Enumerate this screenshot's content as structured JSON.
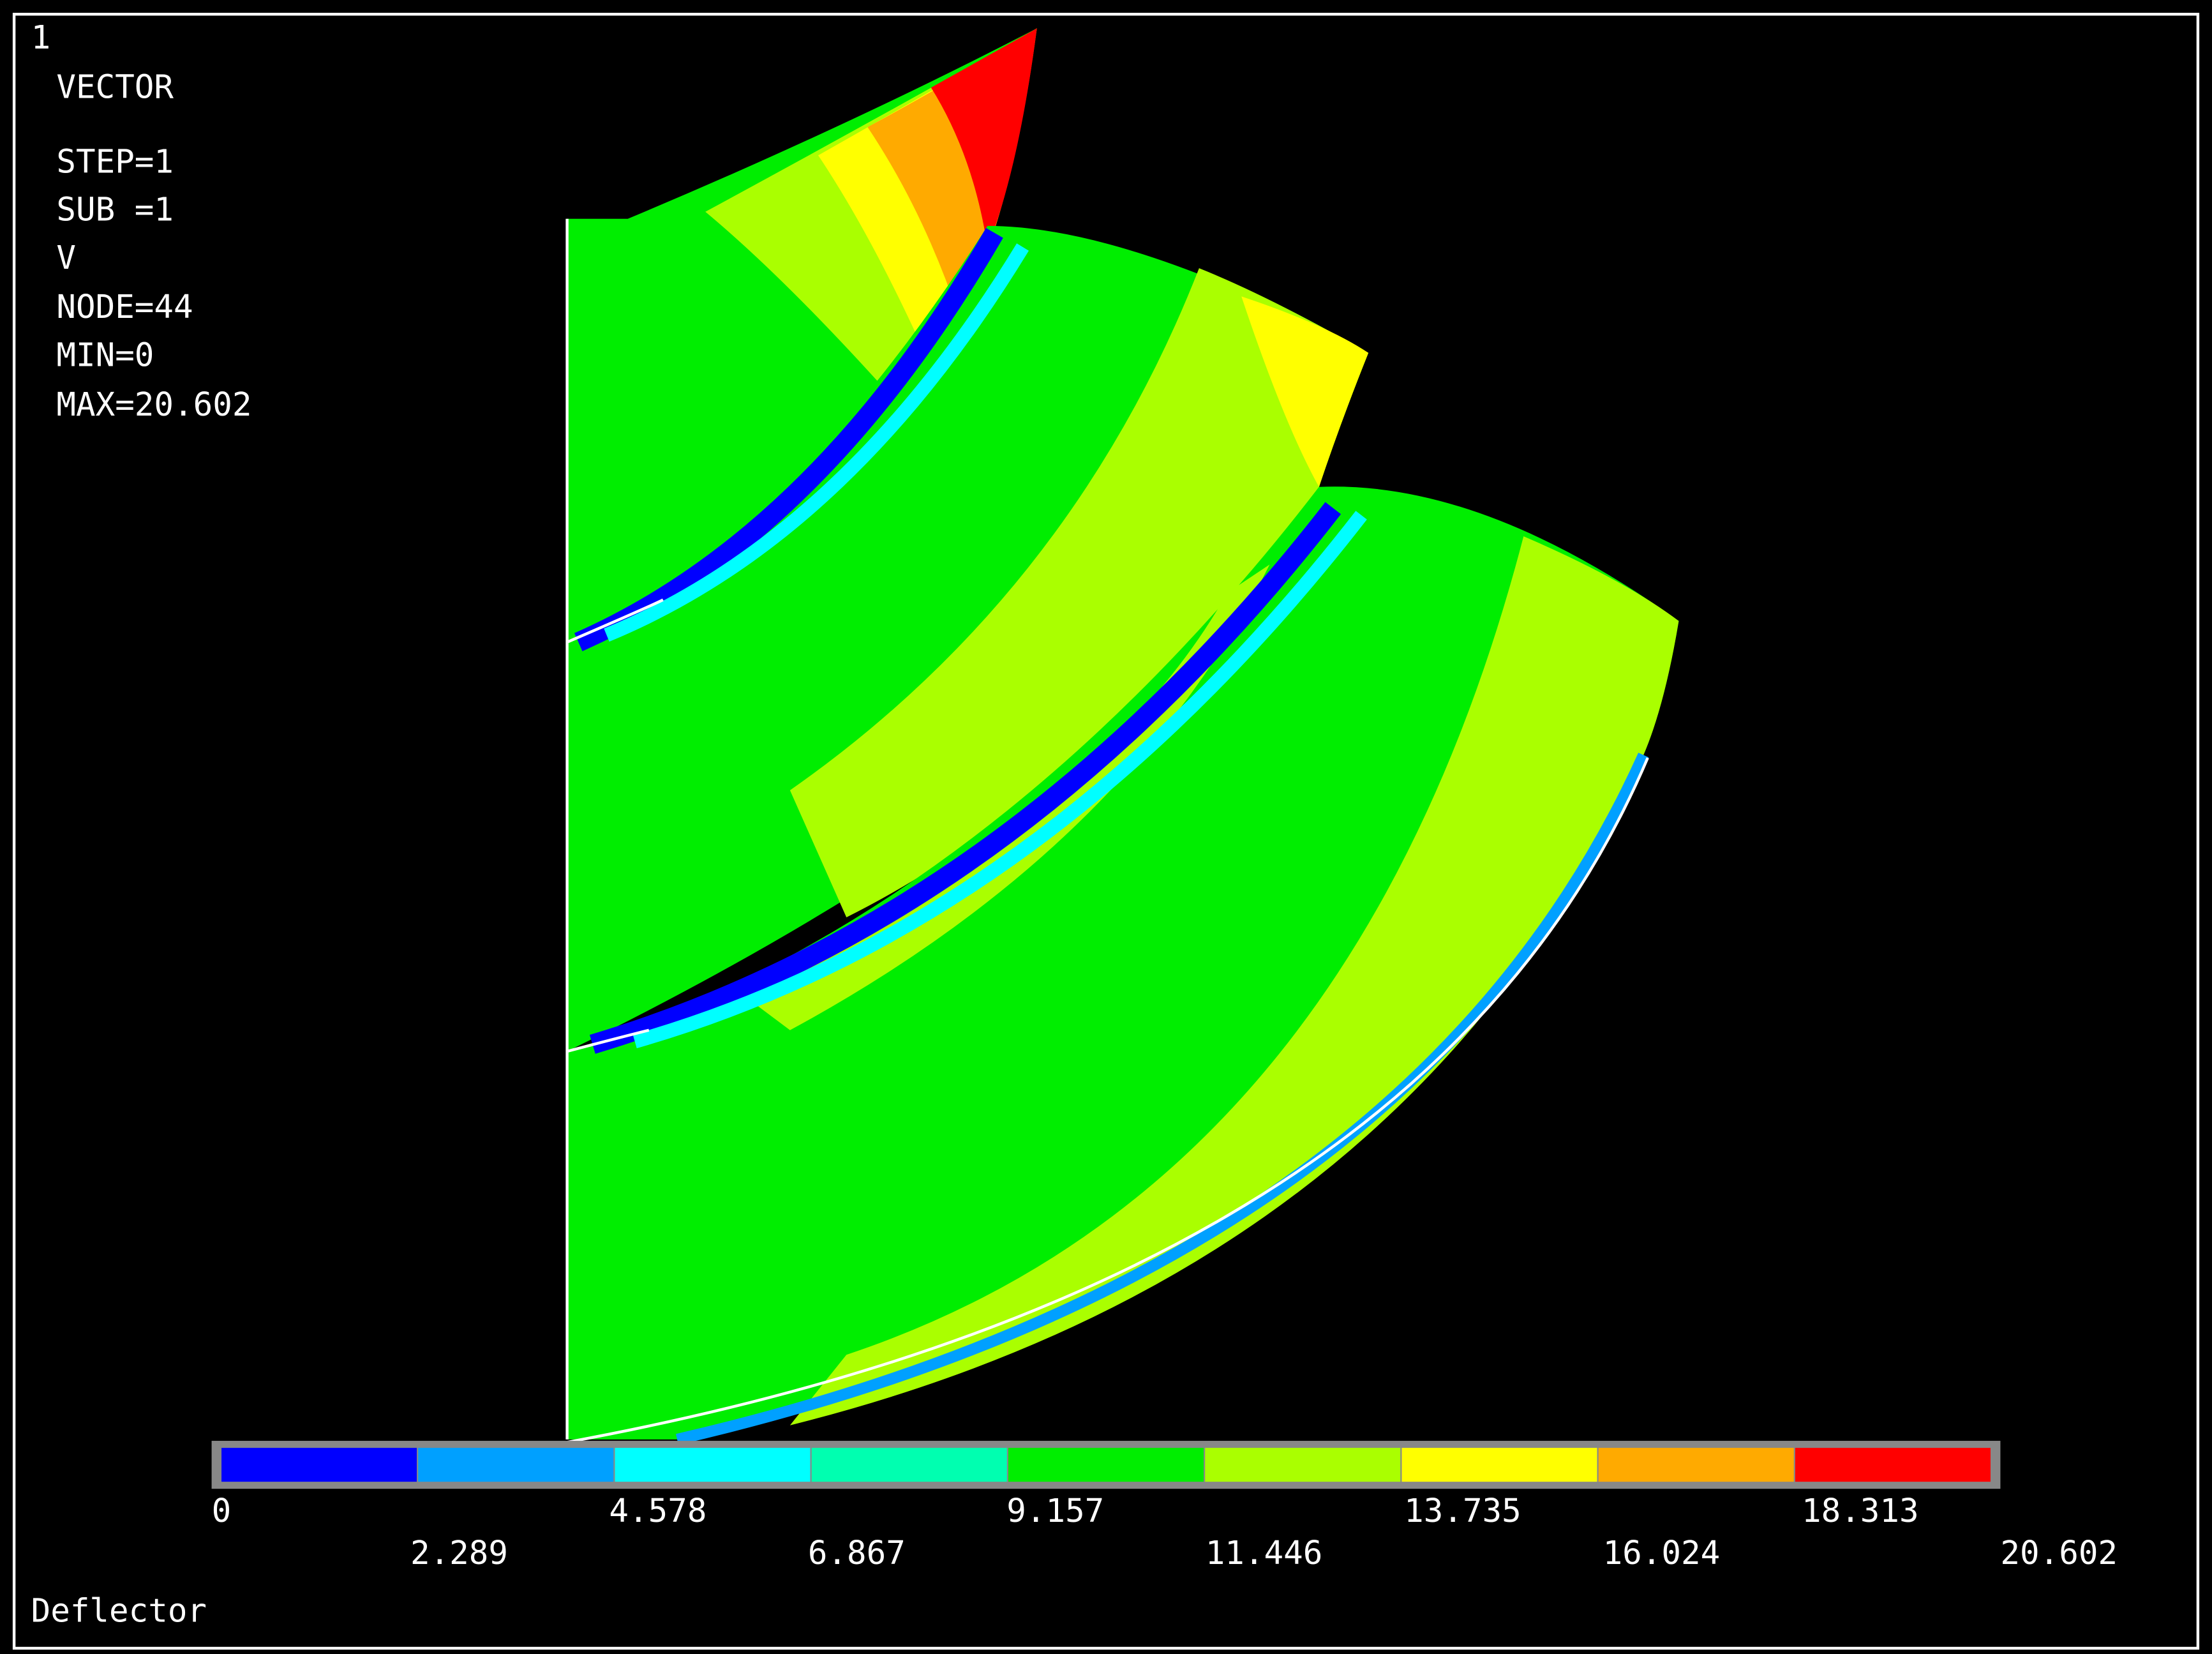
{
  "header": {
    "window": "1",
    "lines": [
      "VECTOR",
      "STEP=1",
      "SUB =1",
      "V",
      "NODE=44",
      "MIN=0",
      "MAX=20.602"
    ]
  },
  "legend": {
    "colors": [
      "#0000ff",
      "#00a0ff",
      "#00ffff",
      "#00ffb0",
      "#00ee00",
      "#aaff00",
      "#ffff00",
      "#ffaa00",
      "#ff0000"
    ],
    "ticks": [
      0,
      2.289,
      4.578,
      6.867,
      9.157,
      11.446,
      13.735,
      16.024,
      18.313,
      20.602
    ]
  },
  "footer": "Deflector"
}
